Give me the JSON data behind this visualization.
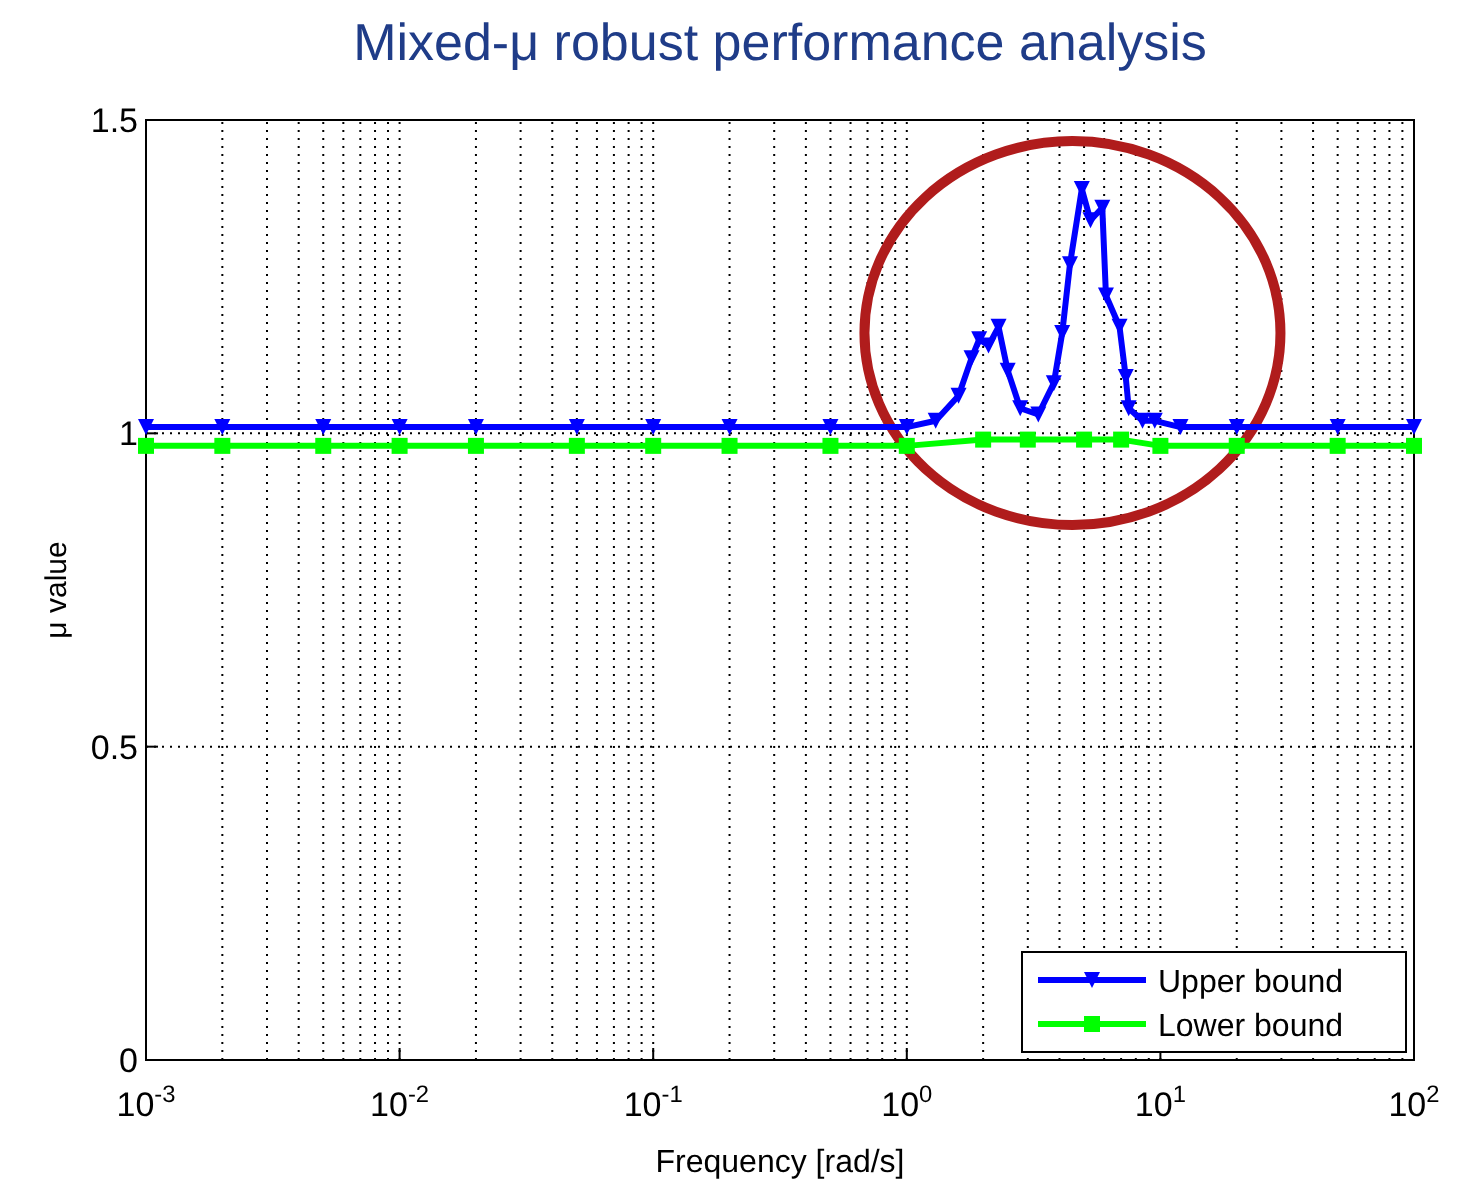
{
  "chart_data": {
    "type": "line",
    "title": "Mixed-μ robust performance analysis",
    "xlabel": "Frequency [rad/s]",
    "ylabel": "μ value",
    "log": "x",
    "grid": true,
    "legend": "bottom right",
    "line_style": "solid",
    "xlim": [
      0.001,
      100
    ],
    "xticks": [
      {
        "value": 0.001,
        "label": "10$^{-3}$"
      },
      {
        "value": 0.01,
        "label": "10$^{-2}$"
      },
      {
        "value": 0.1,
        "label": "10$^{-1}$"
      },
      {
        "value": 1,
        "label": "10$^{0}$"
      },
      {
        "value": 10,
        "label": "10$^{1}$"
      },
      {
        "value": 100,
        "label": "10$^{2}$"
      }
    ],
    "ylim": [
      0,
      1.5
    ],
    "yticks": [
      0,
      0.5,
      1,
      1.5
    ],
    "series": [
      {
        "name": "Upper bound",
        "color": "#0000ff",
        "marker": "triangle",
        "x": [
          0.001,
          0.002,
          0.005,
          0.01,
          0.02,
          0.05,
          0.1,
          0.2,
          0.5,
          1,
          1.3,
          1.6,
          1.8,
          1.93,
          2.1,
          2.3,
          2.5,
          2.8,
          3.3,
          3.8,
          4.1,
          4.4,
          4.9,
          5.3,
          5.9,
          6.1,
          6.9,
          7.3,
          7.5,
          8.5,
          9.5,
          12,
          20,
          50,
          100
        ],
        "values": [
          1.01,
          1.01,
          1.01,
          1.01,
          1.01,
          1.01,
          1.01,
          1.01,
          1.01,
          1.01,
          1.02,
          1.06,
          1.12,
          1.15,
          1.14,
          1.17,
          1.1,
          1.04,
          1.03,
          1.08,
          1.16,
          1.27,
          1.39,
          1.34,
          1.36,
          1.22,
          1.17,
          1.09,
          1.04,
          1.02,
          1.02,
          1.01,
          1.01,
          1.01,
          1.01
        ]
      },
      {
        "name": "Lower bound",
        "color": "#00ff00",
        "marker": "square",
        "x": [
          0.001,
          0.002,
          0.005,
          0.01,
          0.02,
          0.05,
          0.1,
          0.2,
          0.5,
          1,
          2,
          3,
          5,
          7,
          10,
          20,
          50,
          100
        ],
        "values": [
          0.98,
          0.98,
          0.98,
          0.98,
          0.98,
          0.98,
          0.98,
          0.98,
          0.98,
          0.98,
          0.99,
          0.99,
          0.99,
          0.99,
          0.98,
          0.98,
          0.98,
          0.98
        ]
      }
    ]
  }
}
